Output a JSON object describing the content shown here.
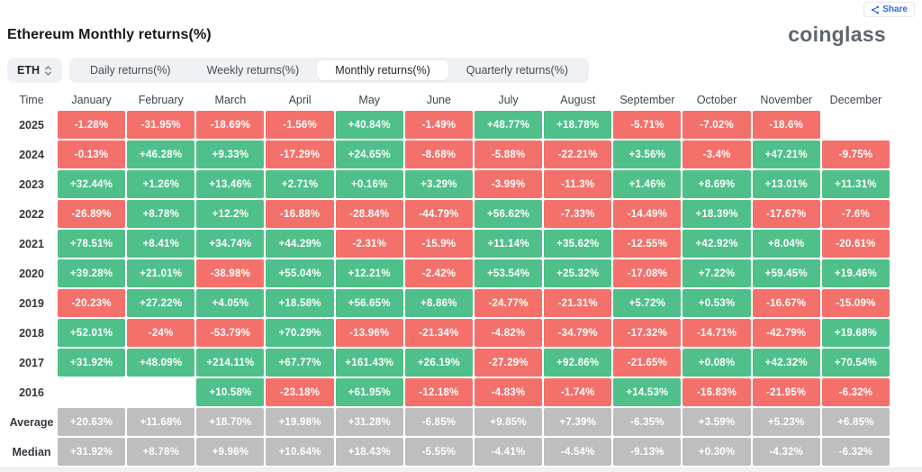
{
  "header": {
    "title": "Ethereum Monthly returns(%)",
    "brand": "coinglass",
    "share_label": "Share"
  },
  "controls": {
    "symbol_select": {
      "value": "ETH"
    },
    "tabs": [
      {
        "label": "Daily returns(%)",
        "active": false
      },
      {
        "label": "Weekly returns(%)",
        "active": false
      },
      {
        "label": "Monthly returns(%)",
        "active": true
      },
      {
        "label": "Quarterly returns(%)",
        "active": false
      }
    ]
  },
  "colors": {
    "positive": "#4fc08a",
    "negative": "#f4716b",
    "summary": "#bebebe",
    "share_blue": "#3069e4"
  },
  "chart_data": {
    "type": "heatmap",
    "title": "Ethereum Monthly returns(%)",
    "time_header": "Time",
    "columns": [
      "January",
      "February",
      "March",
      "April",
      "May",
      "June",
      "July",
      "August",
      "September",
      "October",
      "November",
      "December"
    ],
    "rows": [
      {
        "label": "2025",
        "type": "year",
        "values": [
          "-1.28%",
          "-31.95%",
          "-18.69%",
          "-1.56%",
          "+40.84%",
          "-1.49%",
          "+48.77%",
          "+18.78%",
          "-5.71%",
          "-7.02%",
          "-18.6%",
          null
        ]
      },
      {
        "label": "2024",
        "type": "year",
        "values": [
          "-0.13%",
          "+46.28%",
          "+9.33%",
          "-17.29%",
          "+24.65%",
          "-8.68%",
          "-5.88%",
          "-22.21%",
          "+3.56%",
          "-3.4%",
          "+47.21%",
          "-9.75%"
        ]
      },
      {
        "label": "2023",
        "type": "year",
        "values": [
          "+32.44%",
          "+1.26%",
          "+13.46%",
          "+2.71%",
          "+0.16%",
          "+3.29%",
          "-3.99%",
          "-11.3%",
          "+1.46%",
          "+8.69%",
          "+13.01%",
          "+11.31%"
        ]
      },
      {
        "label": "2022",
        "type": "year",
        "values": [
          "-26.89%",
          "+8.78%",
          "+12.2%",
          "-16.88%",
          "-28.84%",
          "-44.79%",
          "+56.62%",
          "-7.33%",
          "-14.49%",
          "+18.39%",
          "-17.67%",
          "-7.6%"
        ]
      },
      {
        "label": "2021",
        "type": "year",
        "values": [
          "+78.51%",
          "+8.41%",
          "+34.74%",
          "+44.29%",
          "-2.31%",
          "-15.9%",
          "+11.14%",
          "+35.62%",
          "-12.55%",
          "+42.92%",
          "+8.04%",
          "-20.61%"
        ]
      },
      {
        "label": "2020",
        "type": "year",
        "values": [
          "+39.28%",
          "+21.01%",
          "-38.98%",
          "+55.04%",
          "+12.21%",
          "-2.42%",
          "+53.54%",
          "+25.32%",
          "-17.08%",
          "+7.22%",
          "+59.45%",
          "+19.46%"
        ]
      },
      {
        "label": "2019",
        "type": "year",
        "values": [
          "-20.23%",
          "+27.22%",
          "+4.05%",
          "+18.58%",
          "+56.65%",
          "+8.86%",
          "-24.77%",
          "-21.31%",
          "+5.72%",
          "+0.53%",
          "-16.67%",
          "-15.09%"
        ]
      },
      {
        "label": "2018",
        "type": "year",
        "values": [
          "+52.01%",
          "-24%",
          "-53.79%",
          "+70.29%",
          "-13.96%",
          "-21.34%",
          "-4.82%",
          "-34.79%",
          "-17.32%",
          "-14.71%",
          "-42.79%",
          "+19.68%"
        ]
      },
      {
        "label": "2017",
        "type": "year",
        "values": [
          "+31.92%",
          "+48.09%",
          "+214.11%",
          "+67.77%",
          "+161.43%",
          "+26.19%",
          "-27.29%",
          "+92.86%",
          "-21.65%",
          "+0.08%",
          "+42.32%",
          "+70.54%"
        ]
      },
      {
        "label": "2016",
        "type": "year",
        "values": [
          null,
          null,
          "+10.58%",
          "-23.18%",
          "+61.95%",
          "-12.18%",
          "-4.83%",
          "-1.74%",
          "+14.53%",
          "-16.83%",
          "-21.95%",
          "-6.32%"
        ]
      },
      {
        "label": "Average",
        "type": "summary",
        "values": [
          "+20.63%",
          "+11.68%",
          "+18.70%",
          "+19.98%",
          "+31.28%",
          "-6.85%",
          "+9.85%",
          "+7.39%",
          "-6.35%",
          "+3.59%",
          "+5.23%",
          "+6.85%"
        ]
      },
      {
        "label": "Median",
        "type": "summary",
        "values": [
          "+31.92%",
          "+8.78%",
          "+9.96%",
          "+10.64%",
          "+18.43%",
          "-5.55%",
          "-4.41%",
          "-4.54%",
          "-9.13%",
          "+0.30%",
          "-4.32%",
          "-6.32%"
        ]
      }
    ]
  }
}
